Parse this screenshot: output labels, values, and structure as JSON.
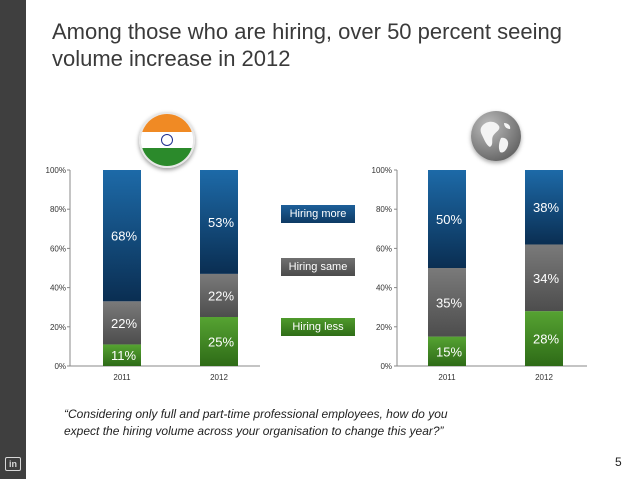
{
  "slide": {
    "title": "Among those who are hiring, over 50 percent seeing volume increase in 2012",
    "quote": "“Considering only full and part-time professional employees, how do you expect the hiring volume across your organisation to change this year?”",
    "page_number": "5",
    "logo_text": "in"
  },
  "legend": {
    "more": "Hiring more",
    "same": "Hiring same",
    "less": "Hiring less"
  },
  "icons": {
    "left": "india-flag-icon",
    "right": "globe-icon",
    "corner": "linkedin-icon"
  },
  "colors": {
    "more_top": "#1d6aa8",
    "more_bottom": "#0a2e52",
    "same_top": "#7a7a7a",
    "same_bottom": "#4d4d4d",
    "less_top": "#56a332",
    "less_bottom": "#2e6b17",
    "sidebar": "#3f3f3f"
  },
  "chart_data": [
    {
      "type": "bar",
      "stacked": true,
      "name": "India",
      "categories": [
        "2011",
        "2012"
      ],
      "series": [
        {
          "name": "Hiring less",
          "values": [
            11,
            25
          ],
          "labels": [
            "11%",
            "25%"
          ]
        },
        {
          "name": "Hiring same",
          "values": [
            22,
            22
          ],
          "labels": [
            "22%",
            "22%"
          ]
        },
        {
          "name": "Hiring more",
          "values": [
            68,
            53
          ],
          "labels": [
            "68%",
            "53%"
          ]
        }
      ],
      "ylim": [
        0,
        100
      ],
      "yticks": [
        "0%",
        "20%",
        "40%",
        "60%",
        "80%",
        "100%"
      ]
    },
    {
      "type": "bar",
      "stacked": true,
      "name": "Global",
      "categories": [
        "2011",
        "2012"
      ],
      "series": [
        {
          "name": "Hiring less",
          "values": [
            15,
            28
          ],
          "labels": [
            "15%",
            "28%"
          ]
        },
        {
          "name": "Hiring same",
          "values": [
            35,
            34
          ],
          "labels": [
            "35%",
            "34%"
          ]
        },
        {
          "name": "Hiring more",
          "values": [
            50,
            38
          ],
          "labels": [
            "50%",
            "38%"
          ]
        }
      ],
      "ylim": [
        0,
        100
      ],
      "yticks": [
        "0%",
        "20%",
        "40%",
        "60%",
        "80%",
        "100%"
      ]
    }
  ]
}
